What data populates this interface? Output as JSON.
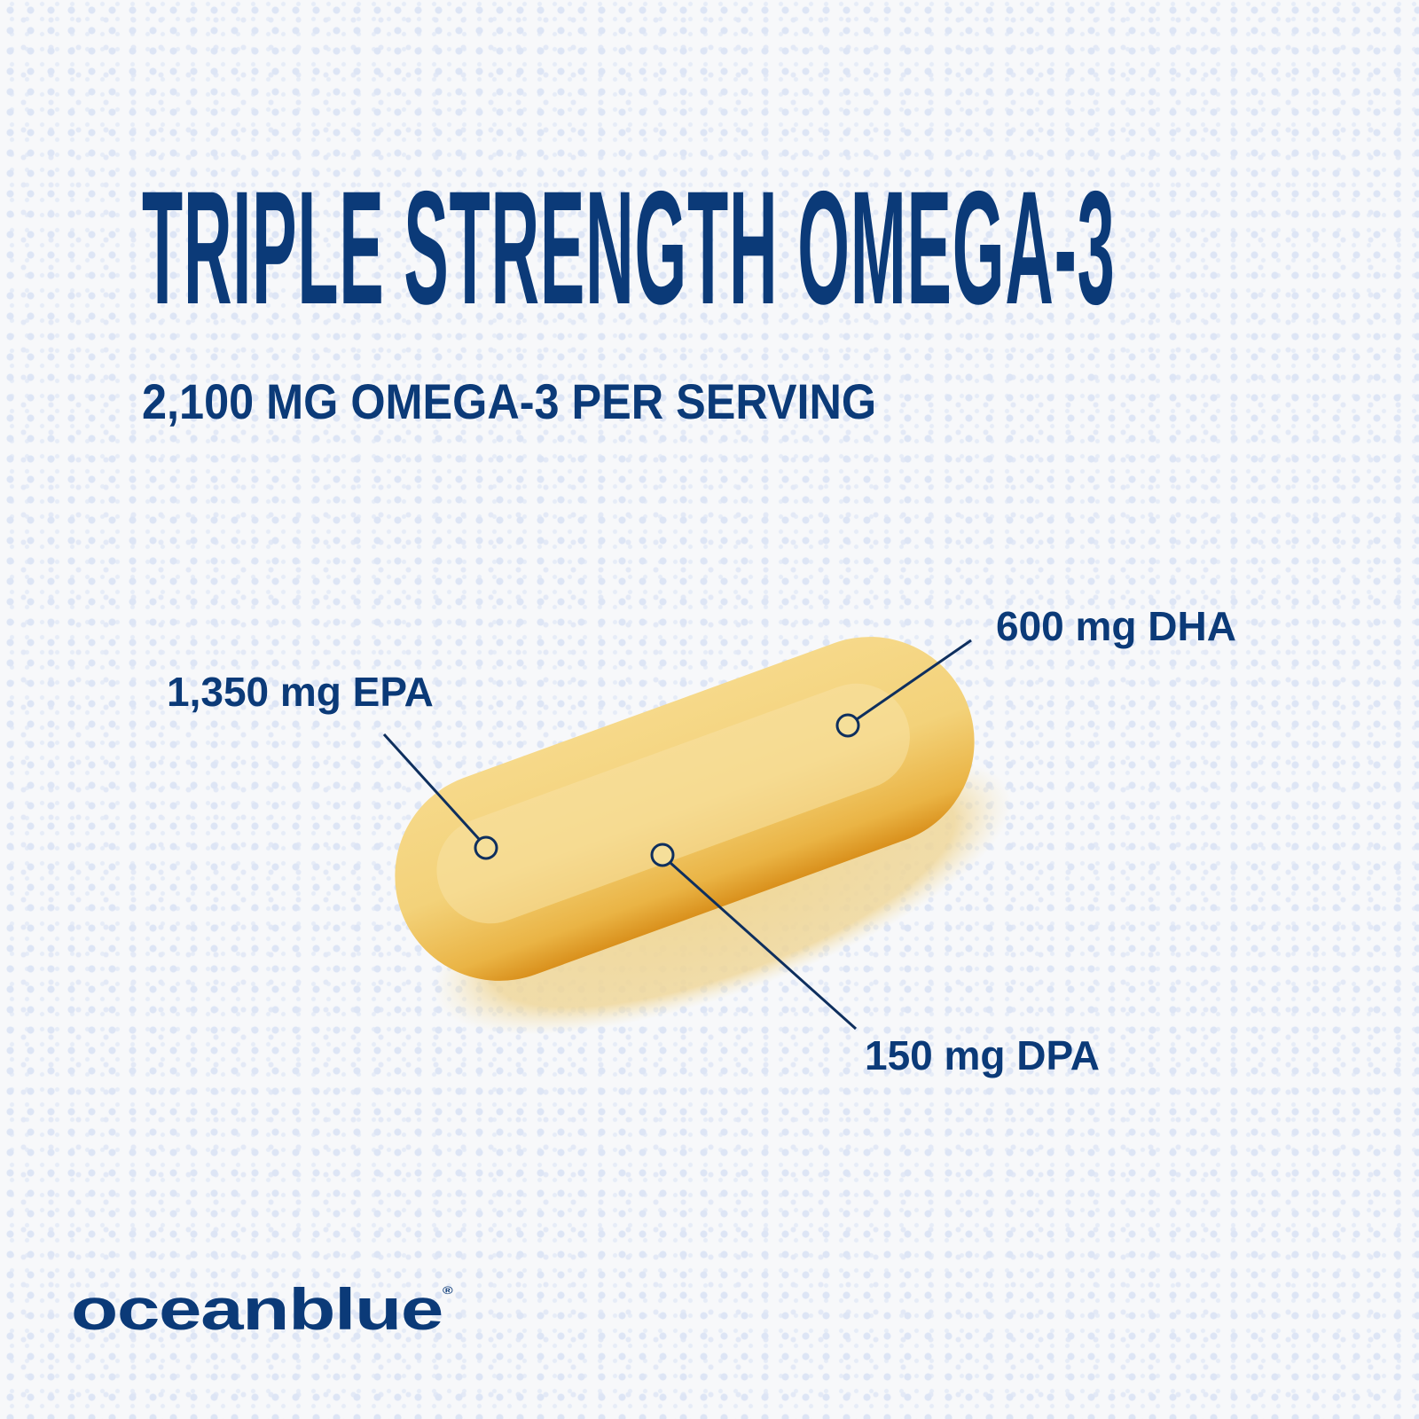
{
  "headline": "TRIPLE STRENGTH OMEGA-3",
  "subheadline": "2,100 MG OMEGA-3 PER SERVING",
  "callouts": [
    {
      "label": "1,350 mg EPA"
    },
    {
      "label": "600 mg DHA"
    },
    {
      "label": "150 mg DPA"
    }
  ],
  "brand": {
    "name": "oceanblue",
    "mark": "®"
  },
  "colors": {
    "brand_navy": "#0b3a78",
    "background": "#f7f8fa",
    "dots": "#dde5f5",
    "softgel": "#f2c250"
  }
}
